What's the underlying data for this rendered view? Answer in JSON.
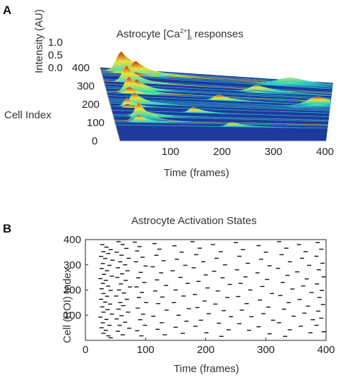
{
  "panelA": {
    "letter": "A",
    "title_prefix": "Astrocyte [Ca",
    "title_sup": "2+",
    "title_mid": "]",
    "title_sub": "i",
    "title_suffix": " responses",
    "z_label": "Intensity (AU)",
    "y_label": "Cell Index",
    "x_label": "Time (frames)"
  },
  "panelB": {
    "letter": "B",
    "title": "Astrocyte Activation States",
    "y_label": "Cell (ROI) Index",
    "x_label": "Time (frames)"
  },
  "colors": {
    "surface_low": "#1f3a9e",
    "surface_mid": "#2fd3c8",
    "surface_mid2": "#e8e43a",
    "surface_high": "#c81e1e",
    "raster_mark": "#111111",
    "axis": "#222222"
  },
  "chart_data": [
    {
      "type": "area",
      "title": "Astrocyte [Ca2+]i responses",
      "xlabel": "Time (frames)",
      "ylabel": "Cell Index",
      "zlabel": "Intensity (AU)",
      "xlim": [
        0,
        400
      ],
      "ylim": [
        0,
        400
      ],
      "zlim": [
        0,
        1.0
      ],
      "x_ticks": [
        100,
        200,
        300,
        400
      ],
      "y_ticks": [
        0,
        100,
        200,
        300,
        400
      ],
      "z_ticks": [
        "0.0",
        "0.5",
        "1.0"
      ],
      "peaks": [
        {
          "cell": 385,
          "frame": 35,
          "width": 25,
          "amp": 1.0
        },
        {
          "cell": 375,
          "frame": 60,
          "width": 25,
          "amp": 0.6
        },
        {
          "cell": 365,
          "frame": 330,
          "width": 70,
          "amp": 0.45
        },
        {
          "cell": 330,
          "frame": 40,
          "width": 20,
          "amp": 0.9
        },
        {
          "cell": 310,
          "frame": 270,
          "width": 40,
          "amp": 0.35
        },
        {
          "cell": 290,
          "frame": 55,
          "width": 20,
          "amp": 0.55
        },
        {
          "cell": 270,
          "frame": 40,
          "width": 20,
          "amp": 0.85
        },
        {
          "cell": 250,
          "frame": 200,
          "width": 25,
          "amp": 0.3
        },
        {
          "cell": 230,
          "frame": 380,
          "width": 60,
          "amp": 0.55
        },
        {
          "cell": 210,
          "frame": 45,
          "width": 20,
          "amp": 0.6
        },
        {
          "cell": 190,
          "frame": 30,
          "width": 15,
          "amp": 0.45
        },
        {
          "cell": 170,
          "frame": 150,
          "width": 20,
          "amp": 0.3
        },
        {
          "cell": 140,
          "frame": 50,
          "width": 25,
          "amp": 0.45
        },
        {
          "cell": 110,
          "frame": 45,
          "width": 20,
          "amp": 1.0
        },
        {
          "cell": 90,
          "frame": 220,
          "width": 25,
          "amp": 0.25
        }
      ]
    },
    {
      "type": "scatter",
      "title": "Astrocyte Activation States",
      "xlabel": "Time (frames)",
      "ylabel": "Cell (ROI) Index",
      "xlim": [
        0,
        400
      ],
      "ylim": [
        0,
        400
      ],
      "x_ticks": [
        0,
        100,
        200,
        300,
        400
      ],
      "y_ticks": [
        100,
        200,
        300,
        400
      ],
      "points": [
        [
          28,
          380
        ],
        [
          35,
          370
        ],
        [
          42,
          360
        ],
        [
          30,
          352
        ],
        [
          38,
          345
        ],
        [
          26,
          333
        ],
        [
          33,
          325
        ],
        [
          45,
          318
        ],
        [
          29,
          305
        ],
        [
          40,
          298
        ],
        [
          27,
          285
        ],
        [
          36,
          276
        ],
        [
          31,
          262
        ],
        [
          44,
          255
        ],
        [
          25,
          245
        ],
        [
          34,
          238
        ],
        [
          29,
          226
        ],
        [
          38,
          215
        ],
        [
          27,
          205
        ],
        [
          42,
          198
        ],
        [
          30,
          186
        ],
        [
          36,
          175
        ],
        [
          26,
          163
        ],
        [
          33,
          152
        ],
        [
          41,
          144
        ],
        [
          28,
          133
        ],
        [
          37,
          122
        ],
        [
          30,
          112
        ],
        [
          44,
          104
        ],
        [
          25,
          92
        ],
        [
          35,
          83
        ],
        [
          29,
          70
        ],
        [
          40,
          60
        ],
        [
          27,
          50
        ],
        [
          34,
          40
        ],
        [
          30,
          28
        ],
        [
          38,
          18
        ],
        [
          42,
          10
        ],
        [
          55,
          392
        ],
        [
          62,
          380
        ],
        [
          68,
          365
        ],
        [
          52,
          350
        ],
        [
          60,
          338
        ],
        [
          72,
          326
        ],
        [
          58,
          312
        ],
        [
          66,
          300
        ],
        [
          54,
          288
        ],
        [
          70,
          276
        ],
        [
          61,
          264
        ],
        [
          53,
          250
        ],
        [
          67,
          238
        ],
        [
          59,
          224
        ],
        [
          74,
          212
        ],
        [
          56,
          200
        ],
        [
          64,
          188
        ],
        [
          51,
          176
        ],
        [
          69,
          163
        ],
        [
          58,
          150
        ],
        [
          63,
          138
        ],
        [
          55,
          124
        ],
        [
          71,
          112
        ],
        [
          60,
          98
        ],
        [
          52,
          85
        ],
        [
          66,
          72
        ],
        [
          57,
          60
        ],
        [
          73,
          48
        ],
        [
          54,
          36
        ],
        [
          62,
          22
        ],
        [
          82,
          390
        ],
        [
          90,
          372
        ],
        [
          86,
          355
        ],
        [
          95,
          330
        ],
        [
          84,
          312
        ],
        [
          100,
          295
        ],
        [
          92,
          270
        ],
        [
          88,
          248
        ],
        [
          98,
          230
        ],
        [
          85,
          212
        ],
        [
          94,
          190
        ],
        [
          89,
          170
        ],
        [
          101,
          150
        ],
        [
          87,
          128
        ],
        [
          96,
          104
        ],
        [
          91,
          82
        ],
        [
          99,
          60
        ],
        [
          86,
          38
        ],
        [
          93,
          18
        ],
        [
          115,
          384
        ],
        [
          123,
          362
        ],
        [
          118,
          338
        ],
        [
          130,
          316
        ],
        [
          112,
          292
        ],
        [
          126,
          268
        ],
        [
          119,
          240
        ],
        [
          134,
          218
        ],
        [
          116,
          196
        ],
        [
          128,
          172
        ],
        [
          121,
          146
        ],
        [
          135,
          120
        ],
        [
          113,
          96
        ],
        [
          127,
          70
        ],
        [
          120,
          44
        ],
        [
          132,
          22
        ],
        [
          148,
          375
        ],
        [
          160,
          350
        ],
        [
          152,
          322
        ],
        [
          166,
          298
        ],
        [
          145,
          276
        ],
        [
          158,
          250
        ],
        [
          170,
          226
        ],
        [
          150,
          200
        ],
        [
          163,
          176
        ],
        [
          147,
          150
        ],
        [
          172,
          126
        ],
        [
          155,
          100
        ],
        [
          168,
          76
        ],
        [
          150,
          52
        ],
        [
          162,
          28
        ],
        [
          178,
          392
        ],
        [
          190,
          366
        ],
        [
          184,
          340
        ],
        [
          196,
          312
        ],
        [
          180,
          288
        ],
        [
          200,
          260
        ],
        [
          188,
          234
        ],
        [
          203,
          208
        ],
        [
          182,
          182
        ],
        [
          198,
          156
        ],
        [
          186,
          130
        ],
        [
          205,
          106
        ],
        [
          192,
          80
        ],
        [
          183,
          56
        ],
        [
          201,
          30
        ],
        [
          212,
          380
        ],
        [
          225,
          352
        ],
        [
          218,
          326
        ],
        [
          232,
          300
        ],
        [
          214,
          274
        ],
        [
          228,
          248
        ],
        [
          240,
          222
        ],
        [
          220,
          196
        ],
        [
          236,
          170
        ],
        [
          216,
          144
        ],
        [
          230,
          118
        ],
        [
          242,
          94
        ],
        [
          222,
          68
        ],
        [
          238,
          42
        ],
        [
          226,
          16
        ],
        [
          250,
          388
        ],
        [
          262,
          360
        ],
        [
          256,
          334
        ],
        [
          270,
          306
        ],
        [
          252,
          280
        ],
        [
          266,
          252
        ],
        [
          258,
          226
        ],
        [
          274,
          200
        ],
        [
          254,
          174
        ],
        [
          268,
          146
        ],
        [
          260,
          120
        ],
        [
          276,
          94
        ],
        [
          256,
          66
        ],
        [
          272,
          40
        ],
        [
          288,
          376
        ],
        [
          300,
          350
        ],
        [
          292,
          322
        ],
        [
          306,
          296
        ],
        [
          286,
          268
        ],
        [
          302,
          242
        ],
        [
          294,
          214
        ],
        [
          310,
          186
        ],
        [
          290,
          160
        ],
        [
          304,
          132
        ],
        [
          296,
          106
        ],
        [
          312,
          80
        ],
        [
          288,
          54
        ],
        [
          306,
          26
        ],
        [
          322,
          392
        ],
        [
          334,
          366
        ],
        [
          326,
          340
        ],
        [
          340,
          312
        ],
        [
          320,
          286
        ],
        [
          336,
          258
        ],
        [
          328,
          230
        ],
        [
          344,
          204
        ],
        [
          324,
          178
        ],
        [
          338,
          150
        ],
        [
          330,
          124
        ],
        [
          346,
          96
        ],
        [
          322,
          70
        ],
        [
          340,
          42
        ],
        [
          332,
          16
        ],
        [
          355,
          380
        ],
        [
          366,
          352
        ],
        [
          360,
          326
        ],
        [
          372,
          298
        ],
        [
          352,
          272
        ],
        [
          368,
          244
        ],
        [
          362,
          216
        ],
        [
          376,
          190
        ],
        [
          356,
          162
        ],
        [
          370,
          136
        ],
        [
          364,
          108
        ],
        [
          378,
          82
        ],
        [
          358,
          56
        ],
        [
          374,
          30
        ],
        [
          386,
          388
        ],
        [
          392,
          362
        ],
        [
          384,
          334
        ],
        [
          394,
          306
        ],
        [
          388,
          280
        ],
        [
          396,
          252
        ],
        [
          385,
          224
        ],
        [
          393,
          198
        ],
        [
          389,
          170
        ],
        [
          395,
          142
        ],
        [
          387,
          116
        ],
        [
          392,
          88
        ],
        [
          384,
          60
        ],
        [
          396,
          34
        ]
      ]
    }
  ]
}
